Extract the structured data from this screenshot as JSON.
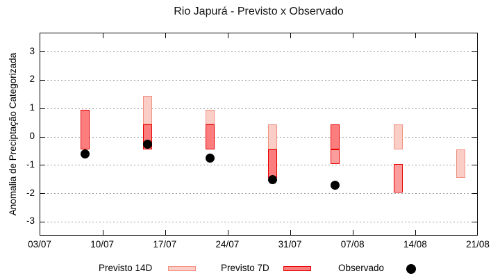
{
  "title": "Rio Japurá - Previsto x Observado",
  "chart_data": {
    "type": "bar",
    "subtype": "forecast-category-bands-with-observed-dots",
    "title": "Rio Japurá - Previsto x Observado",
    "xlabel": "",
    "ylabel": "Anomalia de Preciptação Categorizada",
    "ylim": [
      -3.5,
      3.65
    ],
    "y_ticks": [
      3,
      2,
      1,
      0,
      -1,
      -2,
      -3
    ],
    "x_ticks": [
      {
        "day": 0,
        "label": "03/07"
      },
      {
        "day": 7,
        "label": "10/07"
      },
      {
        "day": 14,
        "label": "17/07"
      },
      {
        "day": 21,
        "label": "24/07"
      },
      {
        "day": 28,
        "label": "31/07"
      },
      {
        "day": 35,
        "label": "07/08"
      },
      {
        "day": 42,
        "label": "14/08"
      },
      {
        "day": 49,
        "label": "21/08"
      }
    ],
    "x_range_days": [
      0,
      49
    ],
    "grid": "horizontal-dotted",
    "legend_position": "below-axis",
    "legend": [
      {
        "label": "Previsto 14D",
        "swatch": "light"
      },
      {
        "label": "Previsto 7D",
        "swatch": "dark"
      },
      {
        "label": "Observado",
        "swatch": "dot"
      }
    ],
    "clusters": [
      {
        "date": "08/07",
        "day": 5,
        "previsto_14d": null,
        "previsto_7d": [
          -0.45,
          0.95
        ],
        "observado": -0.6,
        "segments": [
          {
            "band": [
              -0.45,
              0.95
            ],
            "style": "dark"
          }
        ]
      },
      {
        "date": "15/07",
        "day": 12,
        "previsto_14d": [
          0.45,
          1.45
        ],
        "previsto_7d": [
          -0.45,
          0.45
        ],
        "observado": -0.25,
        "segments": [
          {
            "band": [
              0.45,
              1.45
            ],
            "style": "light"
          },
          {
            "band": [
              -0.45,
              0.45
            ],
            "style": "dark"
          }
        ]
      },
      {
        "date": "22/07",
        "day": 19,
        "previsto_14d": [
          0.45,
          0.95
        ],
        "previsto_7d": [
          -0.45,
          0.45
        ],
        "observado": -0.75,
        "segments": [
          {
            "band": [
              0.45,
              0.95
            ],
            "style": "light"
          },
          {
            "band": [
              -0.45,
              0.45
            ],
            "style": "dark"
          }
        ]
      },
      {
        "date": "29/07",
        "day": 26,
        "previsto_14d": [
          -0.45,
          0.45
        ],
        "previsto_7d": [
          -1.45,
          -0.45
        ],
        "observado": -1.5,
        "segments": [
          {
            "band": [
              -0.45,
              0.45
            ],
            "style": "light"
          },
          {
            "band": [
              -1.45,
              -0.45
            ],
            "style": "dark"
          }
        ]
      },
      {
        "date": "05/08",
        "day": 33,
        "previsto_14d": [
          -0.95,
          -0.45
        ],
        "previsto_7d": [
          -0.45,
          0.45
        ],
        "observado": -1.7,
        "segments": [
          {
            "band": [
              -0.45,
              0.45
            ],
            "style": "dark"
          },
          {
            "band": [
              -0.95,
              -0.45
            ],
            "style": "mid"
          }
        ]
      },
      {
        "date": "12/08",
        "day": 40,
        "previsto_14d": [
          -0.45,
          0.45
        ],
        "previsto_7d": [
          -1.95,
          -0.95
        ],
        "observado": null,
        "segments": [
          {
            "band": [
              -0.45,
              0.45
            ],
            "style": "light"
          },
          {
            "band": [
              -1.95,
              -0.95
            ],
            "style": "mid"
          }
        ]
      },
      {
        "date": "19/08",
        "day": 47,
        "previsto_14d": [
          -1.45,
          -0.45
        ],
        "previsto_7d": null,
        "observado": null,
        "segments": [
          {
            "band": [
              -1.45,
              -0.45
            ],
            "style": "light"
          }
        ]
      }
    ],
    "colors": {
      "light_fill": "#fbcdc7",
      "light_border": "#f09080",
      "dark_fill": "#fc7d7d",
      "dark_border": "#e60000",
      "mid_fill": "#fc9d9d",
      "mid_border": "#e60000",
      "observado": "#000000",
      "grid": "#9a9a9a",
      "axis": "#000000"
    }
  }
}
